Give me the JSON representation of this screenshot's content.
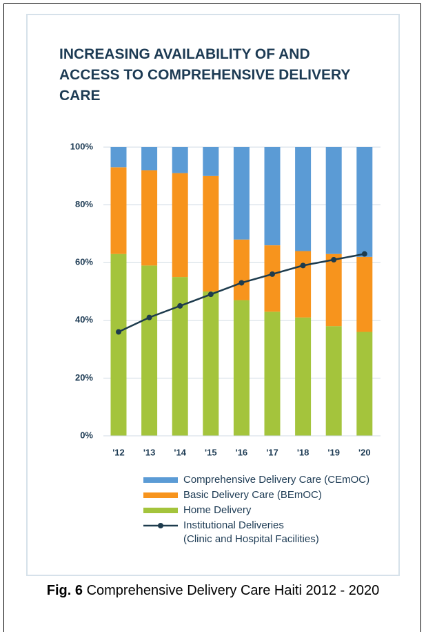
{
  "chart_data": {
    "type": "bar",
    "stacked": true,
    "title": "INCREASING AVAILABILITY OF AND ACCESS TO COMPREHENSIVE DELIVERY CARE",
    "categories": [
      "'12",
      "'13",
      "'14",
      "'15",
      "'16",
      "'17",
      "'18",
      "'19",
      "'20"
    ],
    "series": [
      {
        "name": "Comprehensive Delivery Care (CEmOC)",
        "color": "#5b9bd5",
        "values": [
          7,
          8,
          9,
          10,
          32,
          34,
          36,
          37,
          38
        ]
      },
      {
        "name": "Basic Delivery Care (BEmOC)",
        "color": "#f7941d",
        "values": [
          30,
          33,
          36,
          40,
          21,
          23,
          23,
          25,
          26
        ]
      },
      {
        "name": "Home Delivery",
        "color": "#a4c43c",
        "values": [
          63,
          59,
          55,
          50,
          47,
          43,
          41,
          38,
          36
        ]
      },
      {
        "name": "Institutional Deliveries\n(Clinic and Hospital Facilities)",
        "color": "#1d3b4d",
        "type": "line",
        "values": [
          36,
          41,
          45,
          49,
          53,
          56,
          59,
          61,
          63
        ]
      }
    ],
    "ylim": [
      0,
      100
    ],
    "yticks": [
      {
        "value": 0,
        "label": "0%"
      },
      {
        "value": 20,
        "label": "20%"
      },
      {
        "value": 40,
        "label": "40%"
      },
      {
        "value": 60,
        "label": "60%"
      },
      {
        "value": 80,
        "label": "80%"
      },
      {
        "value": 100,
        "label": "100%"
      }
    ],
    "grid": true
  },
  "caption": {
    "label": "Fig. 6",
    "text": "Comprehensive Delivery Care Haiti 2012 - 2020"
  }
}
